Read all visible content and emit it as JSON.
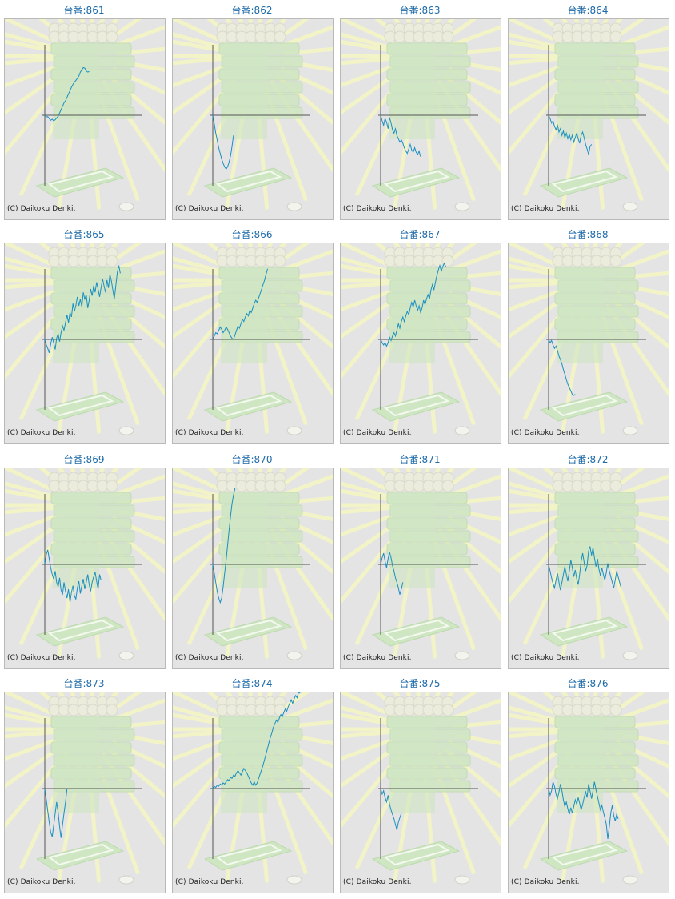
{
  "page": {
    "background": "#ffffff"
  },
  "style": {
    "title_color": "#1d6aa8",
    "panel_bg": "#e4e4e4",
    "axis_color": "#555555",
    "line_color": "#1a8fc0",
    "art_green": "#cfe6c3",
    "art_yellow": "#f3f3c8"
  },
  "copyright": "(C) Daikoku Denki.",
  "chart_data": [
    {
      "type": "line",
      "title": "台番:861",
      "series": [
        {
          "values": [
            0,
            -0.15,
            -0.12,
            -0.3,
            -0.45,
            -0.35,
            -0.5,
            -0.4,
            -0.25,
            -0.1,
            0.2,
            0.5,
            0.8,
            1.1,
            1.3,
            1.6,
            1.9,
            2.2,
            2.5,
            2.75,
            2.95,
            3.1,
            3.3,
            3.5,
            3.85,
            4.05,
            4.25,
            4.2,
            3.95,
            3.85,
            3.9
          ]
        }
      ]
    },
    {
      "type": "line",
      "title": "台番:862",
      "series": [
        {
          "values": [
            0,
            -0.8,
            -1.6,
            -2.2,
            -2.9,
            -3.4,
            -3.9,
            -4.3,
            -4.6,
            -4.8,
            -4.6,
            -4.2,
            -3.6,
            -2.8,
            -1.8
          ]
        }
      ]
    },
    {
      "type": "line",
      "title": "台番:863",
      "series": [
        {
          "values": [
            0,
            -0.5,
            -0.9,
            -0.3,
            -0.6,
            -1.2,
            -0.2,
            -0.7,
            -1.3,
            -1.6,
            -1.2,
            -1.8,
            -2.1,
            -2.4,
            -2.2,
            -2.5,
            -2.9,
            -3.2,
            -3.4,
            -3.0,
            -2.6,
            -3.1,
            -3.3,
            -2.9,
            -3.3,
            -3.5,
            -3.2,
            -3.7
          ]
        }
      ]
    },
    {
      "type": "line",
      "title": "台番:864",
      "series": [
        {
          "values": [
            0,
            -0.3,
            -0.7,
            -0.5,
            -1.0,
            -1.3,
            -0.9,
            -1.5,
            -1.2,
            -1.8,
            -1.4,
            -2.0,
            -1.6,
            -2.1,
            -1.7,
            -2.2,
            -1.8,
            -2.4,
            -2.0,
            -1.6,
            -2.1,
            -2.5,
            -1.8,
            -1.5,
            -2.0,
            -2.6,
            -3.0,
            -3.5,
            -2.8,
            -2.6
          ]
        }
      ]
    },
    {
      "type": "line",
      "title": "台番:865",
      "series": [
        {
          "values": [
            0,
            -0.5,
            -0.8,
            -1.2,
            -0.4,
            0.2,
            -0.3,
            -0.9,
            0.1,
            0.5,
            -0.2,
            0.6,
            1.2,
            0.8,
            1.5,
            2.2,
            1.5,
            2.4,
            2.0,
            3.2,
            2.5,
            3.0,
            3.8,
            3.0,
            3.6,
            2.9,
            4.2,
            3.6,
            4.0,
            2.8,
            3.5,
            4.5,
            3.9,
            4.8,
            4.2,
            5.1,
            4.5,
            3.8,
            4.6,
            5.4,
            4.8,
            4.2,
            5.3,
            4.6,
            5.8,
            5.2,
            4.4,
            3.6,
            4.8,
            6.0,
            6.6,
            5.9
          ]
        }
      ]
    },
    {
      "type": "line",
      "title": "台番:866",
      "series": [
        {
          "values": [
            0,
            0.3,
            0.6,
            0.5,
            0.8,
            1.1,
            0.9,
            0.6,
            0.8,
            1.1,
            0.9,
            0.6,
            0.3,
            0.1,
            0,
            0.4,
            0.8,
            1.2,
            1.0,
            1.4,
            1.8,
            1.6,
            2.0,
            2.3,
            2.1,
            2.6,
            2.4,
            2.8,
            3.2,
            3.5,
            3.3,
            3.7,
            4.1,
            4.5,
            4.9,
            5.3,
            5.8,
            6.3
          ]
        }
      ]
    },
    {
      "type": "line",
      "title": "台番:867",
      "series": [
        {
          "values": [
            0,
            -0.3,
            -0.5,
            -0.3,
            -0.6,
            -0.3,
            0.2,
            -0.1,
            0.3,
            0.6,
            0.3,
            0.8,
            1.4,
            1.0,
            1.6,
            2.0,
            1.6,
            2.1,
            2.5,
            2.2,
            2.8,
            3.3,
            2.9,
            3.5,
            3.0,
            2.6,
            3.0,
            2.4,
            2.8,
            3.5,
            3.1,
            3.6,
            4.0,
            3.6,
            4.4,
            4.9,
            4.4,
            5.1,
            5.7,
            6.2,
            6.6,
            6.1,
            6.5,
            6.8,
            6.5
          ]
        }
      ]
    },
    {
      "type": "line",
      "title": "台番:868",
      "series": [
        {
          "values": [
            0,
            -0.3,
            -0.1,
            -0.5,
            -0.8,
            -0.6,
            -1.0,
            -1.5,
            -1.8,
            -2.2,
            -2.7,
            -3.1,
            -3.6,
            -4.0,
            -4.3,
            -4.6,
            -4.9,
            -5.0,
            -4.9
          ]
        }
      ]
    },
    {
      "type": "line",
      "title": "台番:869",
      "series": [
        {
          "values": [
            0,
            0.9,
            1.3,
            0.5,
            -0.3,
            -0.9,
            -1.3,
            -0.6,
            -1.6,
            -2.0,
            -1.2,
            -2.3,
            -2.7,
            -1.6,
            -2.4,
            -3.0,
            -2.2,
            -3.4,
            -2.5,
            -1.9,
            -2.8,
            -3.1,
            -2.1,
            -1.5,
            -2.6,
            -1.9,
            -1.3,
            -2.2,
            -1.6,
            -0.9,
            -1.8,
            -2.4,
            -1.6,
            -1.1,
            -0.7,
            -1.5,
            -2.2,
            -0.9,
            -1.4
          ]
        }
      ]
    },
    {
      "type": "line",
      "title": "台番:870",
      "series": [
        {
          "values": [
            0,
            -0.8,
            -1.6,
            -2.4,
            -3.0,
            -3.4,
            -3.0,
            -2.0,
            -0.8,
            0.4,
            1.7,
            3.0,
            4.3,
            5.4,
            6.2,
            6.8
          ]
        }
      ]
    },
    {
      "type": "line",
      "title": "台番:871",
      "series": [
        {
          "values": [
            0,
            0.6,
            1.0,
            0.3,
            -0.3,
            0.5,
            1.1,
            0.6,
            -0.1,
            -0.6,
            -1.2,
            -1.6,
            -2.1,
            -2.7,
            -2.2,
            -1.6
          ]
        }
      ]
    },
    {
      "type": "line",
      "title": "台番:872",
      "series": [
        {
          "values": [
            0,
            -0.6,
            -1.2,
            -1.7,
            -2.1,
            -1.4,
            -0.8,
            -1.6,
            -2.3,
            -1.6,
            -0.9,
            -0.2,
            -0.9,
            -1.5,
            -0.6,
            0.4,
            -0.3,
            -1.1,
            -0.5,
            -1.3,
            -1.8,
            -0.9,
            0.3,
            1.0,
            0.2,
            -0.6,
            -0.1,
            1.2,
            1.6,
            0.8,
            1.5,
            0.6,
            -0.2,
            0.5,
            -0.4,
            -1.0,
            -0.3,
            -0.9,
            -1.4,
            -0.7,
            0.1,
            -0.6,
            -1.1,
            -1.6,
            -2.1,
            -1.4,
            -0.6,
            -1.1,
            -1.6,
            -2.1
          ]
        }
      ]
    },
    {
      "type": "line",
      "title": "台番:873",
      "series": [
        {
          "values": [
            0,
            -1.0,
            -2.0,
            -3.0,
            -3.9,
            -4.3,
            -3.3,
            -2.2,
            -1.2,
            -2.1,
            -3.4,
            -4.4,
            -3.2,
            -2.2,
            -1.2,
            0
          ]
        }
      ]
    },
    {
      "type": "line",
      "title": "台番:874",
      "series": [
        {
          "values": [
            0,
            0.2,
            0.1,
            0.3,
            0.2,
            0.4,
            0.3,
            0.5,
            0.4,
            0.6,
            0.8,
            0.7,
            1.0,
            0.9,
            1.2,
            1.1,
            1.4,
            1.6,
            1.4,
            1.2,
            1.5,
            1.8,
            1.6,
            1.4,
            1.1,
            0.8,
            0.5,
            0.3,
            0.6,
            0.3,
            0.5,
            0.9,
            1.3,
            1.7,
            2.1,
            2.6,
            3.1,
            3.6,
            4.1,
            4.6,
            5.0,
            5.5,
            5.8,
            6.1,
            5.9,
            6.3,
            6.6,
            6.4,
            6.8,
            7.1,
            6.9,
            7.3,
            7.6,
            7.9,
            7.6,
            8.0,
            8.3,
            8.1,
            8.6,
            8.5
          ]
        }
      ]
    },
    {
      "type": "line",
      "title": "台番:875",
      "series": [
        {
          "values": [
            0,
            -0.5,
            -0.2,
            -0.8,
            -1.2,
            -0.6,
            -1.4,
            -1.9,
            -2.3,
            -2.7,
            -3.2,
            -3.7,
            -3.0,
            -2.6,
            -2.2
          ]
        }
      ]
    },
    {
      "type": "line",
      "title": "台番:876",
      "series": [
        {
          "values": [
            0,
            -0.6,
            -0.2,
            0.6,
            0.2,
            -0.5,
            -0.9,
            -0.3,
            0.4,
            -0.2,
            -1.0,
            -1.6,
            -1.2,
            -1.8,
            -2.3,
            -1.7,
            -2.2,
            -1.6,
            -1.0,
            -1.4,
            -0.8,
            -1.3,
            -1.9,
            -1.4,
            -0.8,
            -0.3,
            -0.8,
            0.4,
            -0.2,
            -0.9,
            -0.2,
            0.6,
            -0.1,
            -0.7,
            -1.3,
            -1.9,
            -1.5,
            -2.1,
            -2.6,
            -3.2,
            -4.5,
            -3.4,
            -2.2,
            -1.5,
            -2.4,
            -2.9,
            -2.3,
            -2.7
          ]
        }
      ]
    }
  ]
}
